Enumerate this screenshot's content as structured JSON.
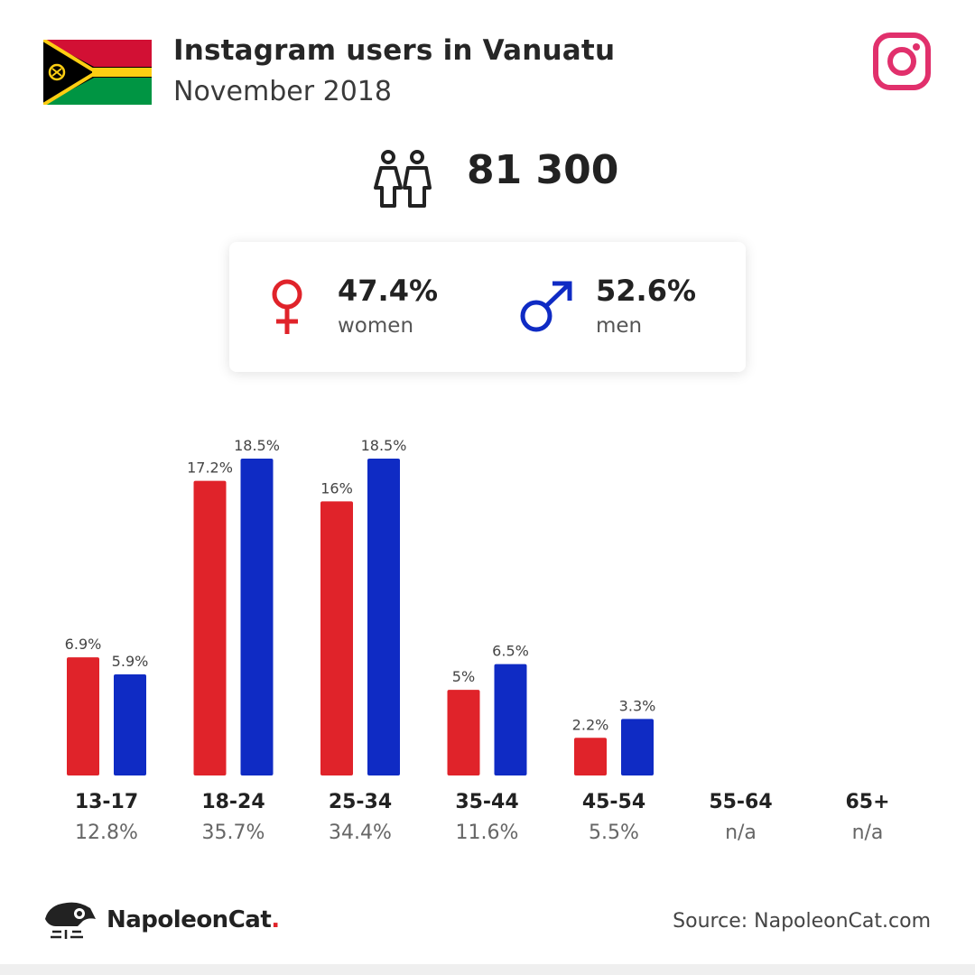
{
  "header": {
    "title": "Instagram users in Vanuatu",
    "subtitle": "November 2018"
  },
  "summary": {
    "total_users": "81 300",
    "women_pct": "47.4%",
    "women_label": "women",
    "men_pct": "52.6%",
    "men_label": "men"
  },
  "colors": {
    "women": "#e0232a",
    "men": "#0f2bc4",
    "instagram": "#e1306c"
  },
  "icons": [
    "vanuatu-flag-icon",
    "instagram-icon",
    "people-icon",
    "female-icon",
    "male-icon",
    "napoleoncat-logo-icon"
  ],
  "chart_data": {
    "type": "bar",
    "categories": [
      "13-17",
      "18-24",
      "25-34",
      "35-44",
      "45-54",
      "55-64",
      "65+"
    ],
    "category_totals": [
      "12.8%",
      "35.7%",
      "34.4%",
      "11.6%",
      "5.5%",
      "n/a",
      "n/a"
    ],
    "series": [
      {
        "name": "women",
        "values": [
          6.9,
          17.2,
          16,
          5,
          2.2,
          null,
          null
        ],
        "labels": [
          "6.9%",
          "17.2%",
          "16%",
          "5%",
          "2.2%",
          "",
          ""
        ]
      },
      {
        "name": "men",
        "values": [
          5.9,
          18.5,
          18.5,
          6.5,
          3.3,
          null,
          null
        ],
        "labels": [
          "5.9%",
          "18.5%",
          "18.5%",
          "6.5%",
          "3.3%",
          "",
          ""
        ]
      }
    ],
    "ylim": [
      0,
      18.5
    ],
    "grid": false
  },
  "footer": {
    "brand": "NapoleonCat",
    "brand_dot": ".",
    "source": "Source: NapoleonCat.com"
  }
}
